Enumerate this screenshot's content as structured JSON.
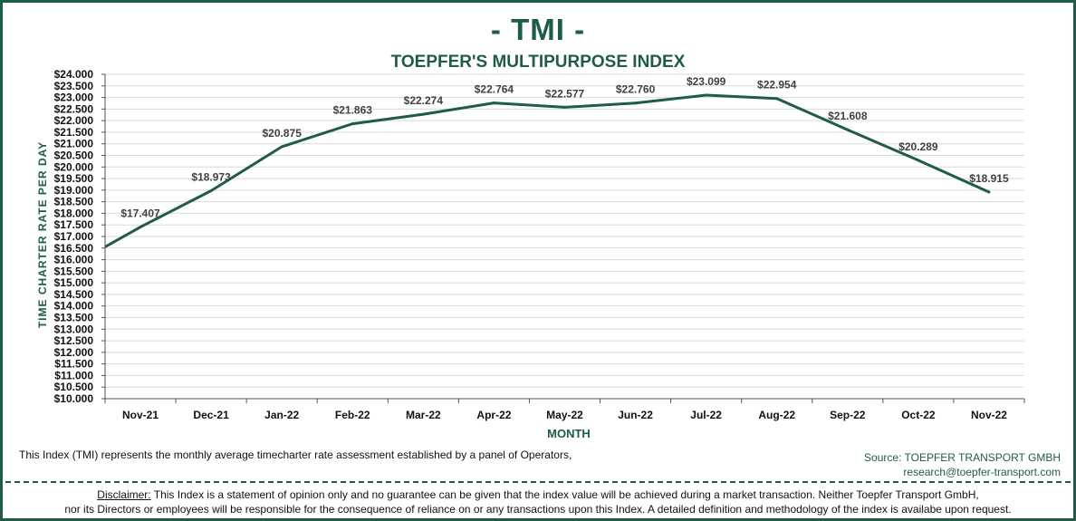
{
  "header": {
    "title": "- TMI -",
    "subtitle": "TOEPFER'S MULTIPURPOSE INDEX"
  },
  "colors": {
    "brand": "#1f5c45",
    "line": "#1f5c45",
    "grid": "#d9d9d9"
  },
  "chart_data": {
    "type": "line",
    "xlabel": "MONTH",
    "ylabel": "TIME CHARTER RATE PER DAY",
    "ylim": [
      10000,
      24000
    ],
    "ystep": 500,
    "y_tick_prefix": "$",
    "grid": true,
    "categories": [
      "Nov-21",
      "Dec-21",
      "Jan-22",
      "Feb-22",
      "Mar-22",
      "Apr-22",
      "May-22",
      "Jun-22",
      "Jul-22",
      "Aug-22",
      "Sep-22",
      "Oct-22",
      "Nov-22"
    ],
    "line_start_value": 16550,
    "series": [
      {
        "values": [
          17407,
          18973,
          20875,
          21863,
          22274,
          22764,
          22577,
          22760,
          23099,
          22954,
          21608,
          20289,
          18915
        ],
        "data_labels": [
          "$17.407",
          "$18.973",
          "$20.875",
          "$21.863",
          "$22.274",
          "$22.764",
          "$22.577",
          "$22.760",
          "$23.099",
          "$22.954",
          "$21.608",
          "$20.289",
          "$18.915"
        ]
      }
    ]
  },
  "footer": {
    "note": "This Index (TMI) represents the monthly  average timecharter rate assessment established by a panel of Operators,",
    "source_line1": "Source: TOEPFER TRANSPORT GMBH",
    "source_line2": "research@toepfer-transport.com",
    "disclaimer_label": "Disclaimer:",
    "disclaimer_line1": " This Index is a statement of opinion  only and no guarantee can be given that the index value will be achieved during  a market transaction. Neither Toepfer Transport GmbH,",
    "disclaimer_line2": "nor its Directors or employees will be responsible for the consequence of reliance on or any transactions upon  this Index.   A detailed definition  and methodology of the index is availabe upon  request."
  }
}
